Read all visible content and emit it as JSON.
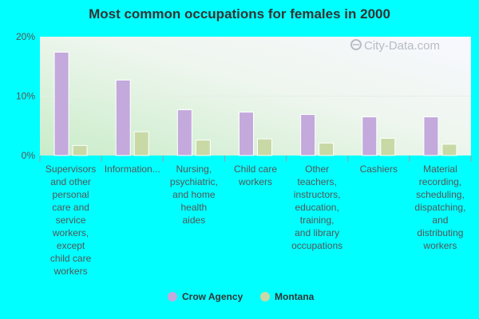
{
  "chart_data": {
    "type": "bar",
    "title": "Most common occupations for females in 2000",
    "xlabel": "",
    "ylabel": "",
    "ylim": [
      0,
      20
    ],
    "yticks": [
      "0%",
      "10%",
      "20%"
    ],
    "categories": [
      [
        "Supervisors",
        "and other",
        "personal",
        "care and",
        "service",
        "workers,",
        "except",
        "child care",
        "workers"
      ],
      [
        "Information..."
      ],
      [
        "Nursing,",
        "psychiatric,",
        "and home",
        "health",
        "aides"
      ],
      [
        "Child care",
        "workers"
      ],
      [
        "Other",
        "teachers,",
        "instructors,",
        "education,",
        "training,",
        "and library",
        "occupations"
      ],
      [
        "Cashiers"
      ],
      [
        "Material",
        "recording,",
        "scheduling,",
        "dispatching,",
        "and",
        "distributing",
        "workers"
      ]
    ],
    "series": [
      {
        "name": "Crow Agency",
        "color": "#c3a9dc",
        "values": [
          17.4,
          12.7,
          7.7,
          7.3,
          6.9,
          6.5,
          6.5
        ]
      },
      {
        "name": "Montana",
        "color": "#c8d9a6",
        "values": [
          1.7,
          4.0,
          2.6,
          2.8,
          2.1,
          2.9,
          1.9
        ]
      }
    ],
    "grid": true,
    "legend": "bottom",
    "watermark": "City-Data.com"
  }
}
